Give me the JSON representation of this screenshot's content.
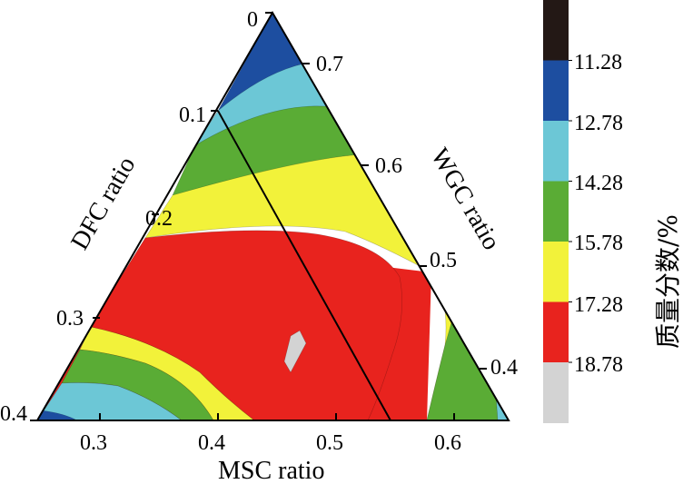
{
  "chart_data": {
    "type": "ternary-contour",
    "axes": {
      "bottom": {
        "label": "MSC ratio",
        "ticks": [
          "0.3",
          "0.4",
          "0.5",
          "0.6"
        ]
      },
      "left": {
        "label": "DFC ratio",
        "ticks": [
          "0",
          "0.1",
          "0.2",
          "0.3",
          "0.4"
        ]
      },
      "right": {
        "label": "WGC ratio",
        "ticks": [
          "0.7",
          "0.6",
          "0.5",
          "0.4"
        ]
      }
    },
    "colorbar": {
      "title": "质量分数/%",
      "boundaries": [
        "11.28",
        "12.78",
        "14.28",
        "15.78",
        "17.28",
        "18.78"
      ],
      "colors": [
        "#231815",
        "#1d4ea0",
        "#6cc7d6",
        "#5aac35",
        "#f2f23a",
        "#e8231e",
        "#d3d3d3"
      ]
    },
    "levels": [
      {
        "range": "< 11.28",
        "color": "#231815"
      },
      {
        "range": "11.28 - 12.78",
        "color": "#1d4ea0"
      },
      {
        "range": "12.78 - 14.28",
        "color": "#6cc7d6"
      },
      {
        "range": "14.28 - 15.78",
        "color": "#5aac35"
      },
      {
        "range": "15.78 - 17.28",
        "color": "#f2f23a"
      },
      {
        "range": "17.28 - 18.78",
        "color": "#e8231e"
      },
      {
        "range": "> 18.78",
        "color": "#d3d3d3"
      }
    ],
    "reference_line": {
      "description": "straight black line from WGC ratio 0.7 / DFC ratio 0.1 edge point to MSC ratio ~0.55 on base"
    }
  }
}
